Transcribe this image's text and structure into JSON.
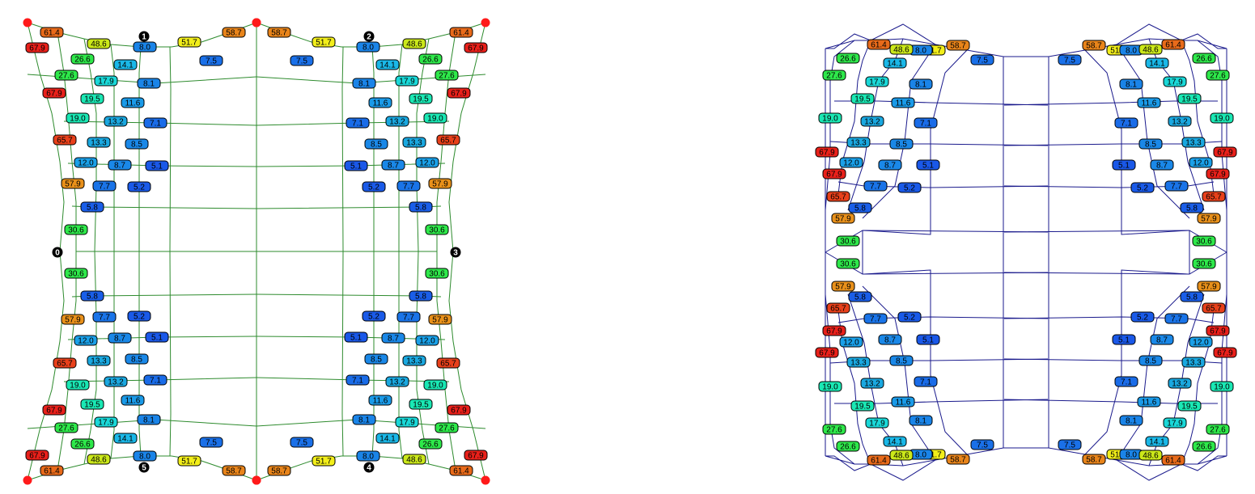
{
  "colors": {
    "left_mesh_line": "#2e8b2e",
    "right_mesh_line": "#1a1a8c",
    "corner_dot": "#ff1a1a",
    "marker_fill": "#000000",
    "marker_text": "#ffffff",
    "label_border": "#000000",
    "label_text": "#000000",
    "label_fills": {
      "61.4": "#e86a1a",
      "67.9": "#e8201a",
      "65.7": "#e8401a",
      "58.7": "#e8841a",
      "57.9": "#e8901a",
      "51.7": "#f2ee1a",
      "48.6": "#cbe81a",
      "30.6": "#2ee84a",
      "27.6": "#2ee84a",
      "26.6": "#2ee84a",
      "19.5": "#1ae8b4",
      "19.0": "#1ae8b4",
      "17.9": "#1ad8d8",
      "14.1": "#1ab8e8",
      "13.3": "#1aa8e0",
      "13.2": "#1aa8e0",
      "12.0": "#1aa0e8",
      "11.6": "#1a9ae8",
      "8.7": "#1a88e8",
      "8.5": "#1a88e8",
      "8.1": "#1a84e8",
      "8.0": "#1a84e8",
      "7.7": "#1a74e8",
      "7.5": "#1a70e8",
      "7.1": "#1a6ce8",
      "5.8": "#1a5ee8",
      "5.2": "#1a5ae8",
      "5.1": "#1a58e8"
    }
  },
  "chart_data": {
    "type": "diagram",
    "panels": [
      {
        "name": "left-mesh",
        "node_markers": [
          "0",
          "1",
          "2",
          "3",
          "4",
          "5"
        ],
        "edge_values_top_right": [
          "58.7",
          "51.7",
          "8.0",
          "48.6",
          "61.4",
          "67.9",
          "26.6",
          "27.6",
          "67.9",
          "7.5",
          "14.1",
          "17.9",
          "8.1",
          "19.5",
          "11.6",
          "19.0",
          "13.2",
          "7.1",
          "65.7",
          "13.3",
          "8.5",
          "12.0",
          "8.7",
          "5.1",
          "57.9",
          "5.2",
          "7.7",
          "5.8",
          "30.6"
        ]
      },
      {
        "name": "right-mesh",
        "edge_values_top_right": [
          "58.7",
          "51.7",
          "8.0",
          "48.6",
          "61.4",
          "26.6",
          "14.1",
          "7.5",
          "27.6",
          "17.9",
          "8.1",
          "19.5",
          "11.6",
          "19.0",
          "13.2",
          "7.1",
          "13.3",
          "8.5",
          "67.9",
          "12.0",
          "8.7",
          "5.1",
          "67.9",
          "7.7",
          "5.2",
          "65.7",
          "5.8",
          "57.9",
          "30.6"
        ]
      }
    ]
  }
}
